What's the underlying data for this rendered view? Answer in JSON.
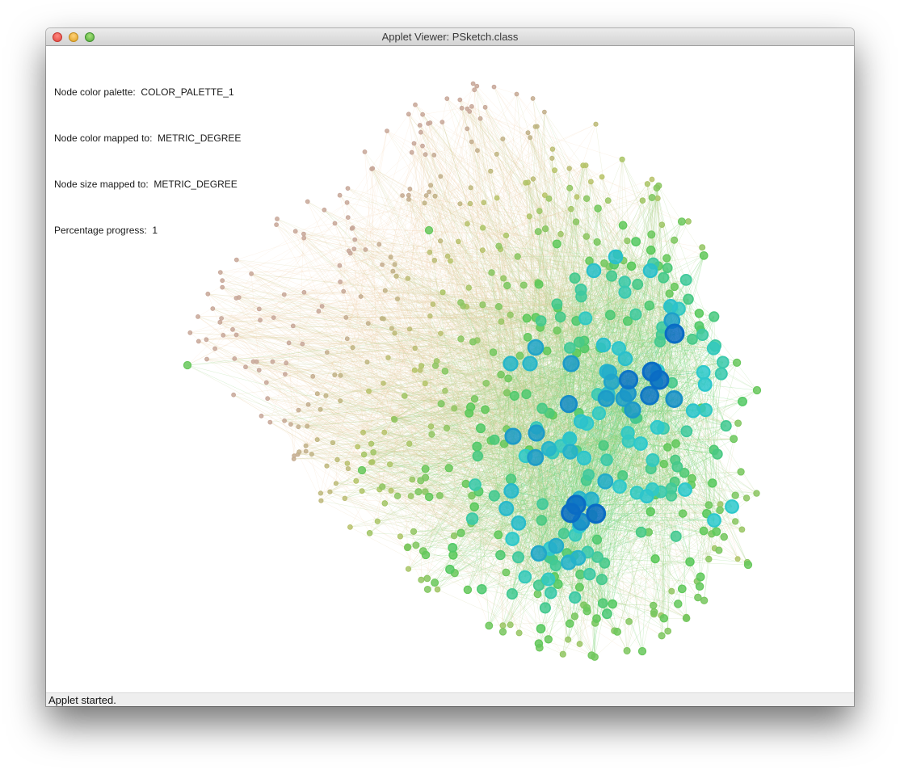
{
  "window": {
    "title": "Applet Viewer: PSketch.class"
  },
  "overlay": {
    "palette_label": "Node color palette:",
    "palette_value": "COLOR_PALETTE_1",
    "color_label": "Node color mapped to:",
    "color_value": "METRIC_DEGREE",
    "size_label": "Node size mapped to:",
    "size_value": "METRIC_DEGREE",
    "progress_label": "Percentage progress:",
    "progress_value": "1"
  },
  "status": {
    "text": "Applet started."
  },
  "colors": {
    "low_degree": "#c8a89a",
    "mid_low_degree": "#b8c46a",
    "mid_degree": "#58c95a",
    "high_degree": "#2ec9cc",
    "top_degree": "#0a6cc4",
    "edge_warm": "#f0c9a0",
    "edge_green": "#66d870",
    "edge_teal": "#2ac0a8"
  },
  "icons": [
    "close-icon",
    "minimize-icon",
    "zoom-icon"
  ]
}
